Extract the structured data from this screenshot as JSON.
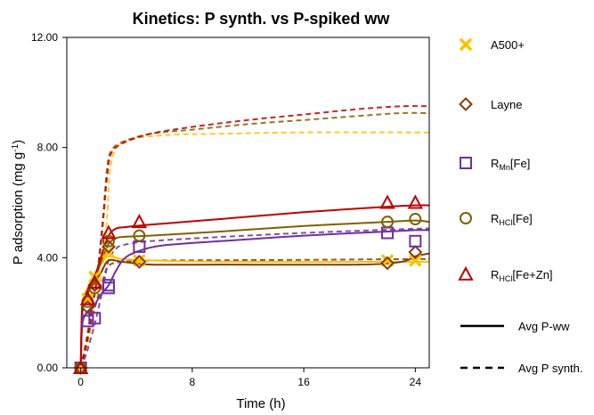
{
  "chart_data": {
    "type": "scatter",
    "title": "Kinetics: P synth. vs P-spiked ww",
    "xlabel": "Time (h)",
    "ylabel_main": "P adsorption (mg g",
    "ylabel_sup": "-1",
    "ylabel_end": ")",
    "xlim": [
      -1,
      25
    ],
    "ylim": [
      0,
      12
    ],
    "xticks": [
      0,
      8,
      16,
      24
    ],
    "xtick_labels": [
      "0",
      "8",
      "16",
      "24"
    ],
    "yticks": [
      0,
      4,
      8,
      12
    ],
    "ytick_labels": [
      "0.00",
      "4.00",
      "8.00",
      "12.00"
    ],
    "grid": false,
    "legend_position": "right",
    "series": [
      {
        "name": "A500+",
        "legend_parts": [
          {
            "t": "A500+"
          }
        ],
        "marker": "x",
        "color": "#FFC000",
        "points": [
          [
            0,
            0
          ],
          [
            0.5,
            2.5
          ],
          [
            1,
            3.3
          ],
          [
            2,
            4.2
          ],
          [
            4.2,
            3.9
          ],
          [
            22,
            3.9
          ],
          [
            24,
            3.9
          ]
        ],
        "fit_ww": [
          [
            0,
            0
          ],
          [
            0.1,
            2.0
          ],
          [
            0.25,
            2.6
          ],
          [
            0.5,
            2.9
          ],
          [
            1,
            3.4
          ],
          [
            1.5,
            3.8
          ],
          [
            2,
            4.05
          ],
          [
            3,
            3.95
          ],
          [
            5,
            3.9
          ],
          [
            10,
            3.85
          ],
          [
            24,
            3.85
          ],
          [
            25,
            3.85
          ]
        ],
        "fit_synth": [
          [
            0,
            0
          ],
          [
            0.4,
            0.6
          ],
          [
            0.8,
            1.7
          ],
          [
            1.2,
            2.6
          ],
          [
            1.6,
            3.8
          ],
          [
            1.9,
            5.5
          ],
          [
            2.1,
            7.2
          ],
          [
            2.6,
            8.0
          ],
          [
            3.5,
            8.3
          ],
          [
            6,
            8.45
          ],
          [
            10,
            8.5
          ],
          [
            16,
            8.55
          ],
          [
            24,
            8.55
          ],
          [
            25,
            8.55
          ]
        ]
      },
      {
        "name": "Layne",
        "legend_parts": [
          {
            "t": "Layne"
          }
        ],
        "marker": "diamond",
        "color": "#843C0C",
        "points": [
          [
            0,
            0
          ],
          [
            0.5,
            2.2
          ],
          [
            1,
            3.0
          ],
          [
            2,
            4.4
          ],
          [
            4.2,
            3.85
          ],
          [
            22,
            3.8
          ],
          [
            24,
            4.2
          ]
        ],
        "fit_ww": [
          [
            0,
            0
          ],
          [
            0.1,
            1.9
          ],
          [
            0.3,
            2.4
          ],
          [
            0.6,
            2.8
          ],
          [
            1,
            3.1
          ],
          [
            1.5,
            3.5
          ],
          [
            2,
            3.9
          ],
          [
            3,
            3.85
          ],
          [
            5,
            3.75
          ],
          [
            10,
            3.75
          ],
          [
            20,
            3.75
          ],
          [
            23,
            3.85
          ],
          [
            24,
            4.05
          ],
          [
            25,
            4.15
          ]
        ],
        "fit_synth": [
          [
            0,
            0
          ],
          [
            0.4,
            0.8
          ],
          [
            0.8,
            1.8
          ],
          [
            1.2,
            2.5
          ],
          [
            1.6,
            3.2
          ],
          [
            2,
            3.7
          ],
          [
            3,
            3.85
          ],
          [
            6,
            3.9
          ],
          [
            16,
            3.92
          ],
          [
            24,
            3.95
          ],
          [
            25,
            3.95
          ]
        ]
      },
      {
        "name": "RMn[Fe]",
        "legend_parts": [
          {
            "t": "R"
          },
          {
            "t": "Mn",
            "sub": true
          },
          {
            "t": "[Fe]"
          }
        ],
        "marker": "square",
        "color": "#7030A0",
        "points": [
          [
            0,
            0
          ],
          [
            0.5,
            1.7
          ],
          [
            1,
            1.8
          ],
          [
            2,
            2.9
          ],
          [
            2,
            3.0
          ],
          [
            4.2,
            4.4
          ],
          [
            22,
            4.9
          ],
          [
            24,
            4.6
          ]
        ],
        "fit_ww": [
          [
            0,
            0
          ],
          [
            0.1,
            1.5
          ],
          [
            0.3,
            1.9
          ],
          [
            0.6,
            2.1
          ],
          [
            1,
            2.3
          ],
          [
            1.5,
            2.7
          ],
          [
            2,
            3.0
          ],
          [
            2.5,
            3.5
          ],
          [
            3,
            3.9
          ],
          [
            3.5,
            4.1
          ],
          [
            4.5,
            4.3
          ],
          [
            6,
            4.45
          ],
          [
            10,
            4.6
          ],
          [
            16,
            4.8
          ],
          [
            22,
            4.95
          ],
          [
            24,
            5.0
          ],
          [
            25,
            5.0
          ]
        ],
        "fit_synth": [
          [
            0,
            0
          ],
          [
            0.4,
            0.5
          ],
          [
            0.8,
            1.2
          ],
          [
            1.2,
            2.0
          ],
          [
            1.6,
            2.9
          ],
          [
            2,
            3.9
          ],
          [
            2.5,
            4.3
          ],
          [
            3,
            4.45
          ],
          [
            5,
            4.6
          ],
          [
            10,
            4.75
          ],
          [
            16,
            4.9
          ],
          [
            24,
            5.05
          ],
          [
            25,
            5.05
          ]
        ]
      },
      {
        "name": "RHCl[Fe]",
        "legend_parts": [
          {
            "t": "R"
          },
          {
            "t": "HCl",
            "sub": true
          },
          {
            "t": "[Fe]"
          }
        ],
        "marker": "circle",
        "color": "#806000",
        "points": [
          [
            0,
            0
          ],
          [
            0.5,
            2.4
          ],
          [
            1,
            2.9
          ],
          [
            2,
            4.6
          ],
          [
            4.2,
            4.8
          ],
          [
            22,
            5.3
          ],
          [
            24,
            5.4
          ]
        ],
        "fit_ww": [
          [
            0,
            0
          ],
          [
            0.1,
            2.1
          ],
          [
            0.3,
            2.5
          ],
          [
            0.6,
            2.8
          ],
          [
            1,
            3.2
          ],
          [
            1.5,
            3.9
          ],
          [
            2,
            4.5
          ],
          [
            2.5,
            4.7
          ],
          [
            3,
            4.75
          ],
          [
            5,
            4.8
          ],
          [
            10,
            4.95
          ],
          [
            16,
            5.15
          ],
          [
            22,
            5.3
          ],
          [
            24,
            5.35
          ],
          [
            25,
            5.3
          ]
        ],
        "fit_synth": [
          [
            0,
            0
          ],
          [
            0.4,
            1.0
          ],
          [
            0.8,
            2.2
          ],
          [
            1.2,
            3.5
          ],
          [
            1.6,
            5.5
          ],
          [
            1.9,
            7.3
          ],
          [
            2.2,
            7.9
          ],
          [
            3,
            8.2
          ],
          [
            5,
            8.5
          ],
          [
            8,
            8.65
          ],
          [
            12,
            8.85
          ],
          [
            16,
            9.0
          ],
          [
            20,
            9.15
          ],
          [
            23,
            9.25
          ],
          [
            25,
            9.25
          ]
        ]
      },
      {
        "name": "RHCl[Fe+Zn]",
        "legend_parts": [
          {
            "t": "R"
          },
          {
            "t": "HCl",
            "sub": true
          },
          {
            "t": "[Fe+Zn]"
          }
        ],
        "marker": "triangle",
        "color": "#C00000",
        "points": [
          [
            0,
            0
          ],
          [
            0.5,
            2.5
          ],
          [
            1,
            3.1
          ],
          [
            2,
            4.9
          ],
          [
            4.2,
            5.3
          ],
          [
            22,
            6.0
          ],
          [
            24,
            6.0
          ]
        ],
        "fit_ww": [
          [
            0,
            0
          ],
          [
            0.1,
            2.2
          ],
          [
            0.3,
            2.6
          ],
          [
            0.6,
            2.9
          ],
          [
            1,
            3.3
          ],
          [
            1.5,
            4.1
          ],
          [
            2,
            4.8
          ],
          [
            2.5,
            5.05
          ],
          [
            3,
            5.1
          ],
          [
            5,
            5.2
          ],
          [
            10,
            5.4
          ],
          [
            16,
            5.65
          ],
          [
            22,
            5.85
          ],
          [
            24,
            5.9
          ],
          [
            25,
            5.9
          ]
        ],
        "fit_synth": [
          [
            0,
            0
          ],
          [
            0.4,
            0.9
          ],
          [
            0.8,
            2.1
          ],
          [
            1.2,
            3.3
          ],
          [
            1.6,
            5.3
          ],
          [
            1.9,
            7.0
          ],
          [
            2.2,
            7.8
          ],
          [
            3,
            8.15
          ],
          [
            5,
            8.5
          ],
          [
            8,
            8.75
          ],
          [
            12,
            9.0
          ],
          [
            16,
            9.2
          ],
          [
            20,
            9.4
          ],
          [
            23,
            9.5
          ],
          [
            25,
            9.5
          ]
        ]
      }
    ],
    "line_styles": [
      {
        "name": "Avg P-ww",
        "dash": "solid"
      },
      {
        "name": "Avg P synth.",
        "dash": "dashed"
      }
    ]
  }
}
